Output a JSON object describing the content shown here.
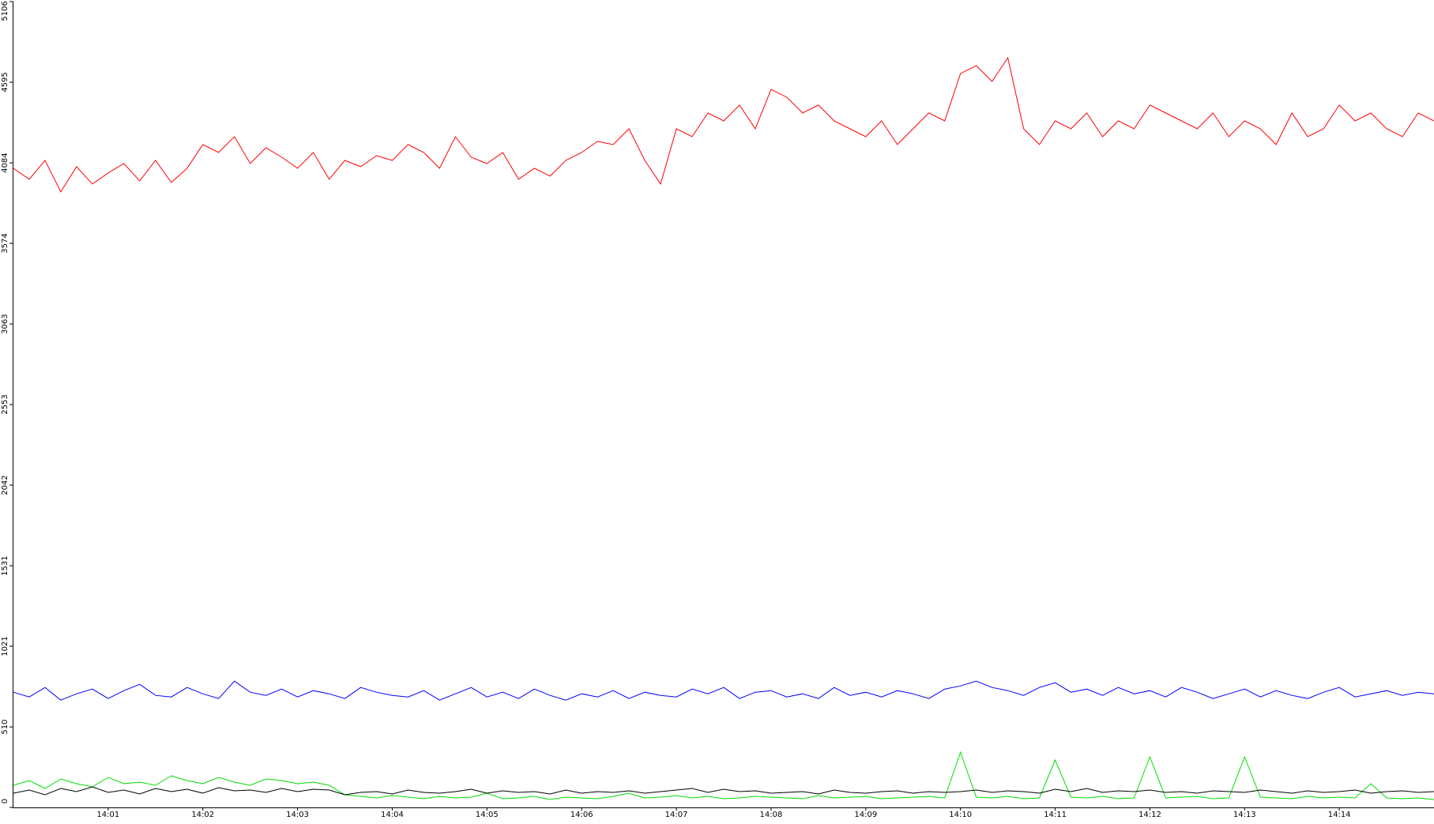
{
  "chart_data": {
    "type": "line",
    "categories": [
      null,
      null,
      null,
      null,
      null,
      null,
      "14:01",
      null,
      null,
      null,
      null,
      null,
      "14:02",
      null,
      null,
      null,
      null,
      null,
      "14:03",
      null,
      null,
      null,
      null,
      null,
      "14:04",
      null,
      null,
      null,
      null,
      null,
      "14:05",
      null,
      null,
      null,
      null,
      null,
      "14:06",
      null,
      null,
      null,
      null,
      null,
      "14:07",
      null,
      null,
      null,
      null,
      null,
      "14:08",
      null,
      null,
      null,
      null,
      null,
      "14:09",
      null,
      null,
      null,
      null,
      null,
      "14:10",
      null,
      null,
      null,
      null,
      null,
      "14:11",
      null,
      null,
      null,
      null,
      null,
      "14:12",
      null,
      null,
      null,
      null,
      null,
      "14:13",
      null,
      null,
      null,
      null,
      null,
      "14:14",
      null,
      null,
      null,
      null,
      null,
      null
    ],
    "series": [
      {
        "color": "#ff0000",
        "values": [
          4050,
          3980,
          4100,
          3900,
          4060,
          3950,
          4020,
          4080,
          3970,
          4100,
          3960,
          4050,
          4200,
          4150,
          4250,
          4080,
          4180,
          4120,
          4050,
          4150,
          3980,
          4100,
          4060,
          4130,
          4100,
          4200,
          4150,
          4050,
          4250,
          4120,
          4080,
          4150,
          3980,
          4050,
          4000,
          4100,
          4150,
          4220,
          4200,
          4300,
          4100,
          3950,
          4300,
          4250,
          4400,
          4350,
          4450,
          4300,
          4550,
          4500,
          4400,
          4450,
          4350,
          4300,
          4250,
          4350,
          4200,
          4300,
          4400,
          4350,
          4650,
          4700,
          4600,
          4750,
          4300,
          4200,
          4350,
          4300,
          4400,
          4250,
          4350,
          4300,
          4450,
          4400,
          4350,
          4300,
          4400,
          4250,
          4350,
          4300,
          4200,
          4400,
          4250,
          4300,
          4450,
          4350,
          4400,
          4300,
          4250,
          4400,
          4350
        ]
      },
      {
        "color": "#0000ff",
        "values": [
          730,
          700,
          760,
          680,
          720,
          750,
          690,
          740,
          780,
          710,
          700,
          760,
          720,
          690,
          800,
          730,
          710,
          750,
          700,
          740,
          720,
          690,
          760,
          730,
          710,
          700,
          740,
          680,
          720,
          760,
          700,
          730,
          690,
          750,
          710,
          680,
          720,
          700,
          740,
          690,
          730,
          710,
          700,
          750,
          720,
          760,
          690,
          730,
          740,
          700,
          720,
          690,
          760,
          710,
          730,
          700,
          740,
          720,
          690,
          750,
          770,
          800,
          760,
          740,
          710,
          760,
          790,
          730,
          750,
          710,
          760,
          720,
          740,
          700,
          760,
          730,
          690,
          720,
          750,
          700,
          740,
          710,
          690,
          730,
          760,
          700,
          720,
          740,
          710,
          730,
          720
        ]
      },
      {
        "color": "#00dd00",
        "values": [
          140,
          170,
          120,
          180,
          150,
          130,
          190,
          150,
          160,
          140,
          200,
          170,
          150,
          190,
          160,
          140,
          180,
          170,
          150,
          160,
          140,
          80,
          70,
          60,
          75,
          65,
          55,
          70,
          60,
          65,
          90,
          55,
          60,
          70,
          50,
          65,
          60,
          55,
          70,
          90,
          60,
          65,
          75,
          60,
          70,
          55,
          60,
          70,
          65,
          60,
          55,
          75,
          60,
          65,
          70,
          55,
          60,
          65,
          70,
          60,
          350,
          65,
          60,
          70,
          55,
          60,
          300,
          65,
          60,
          70,
          55,
          60,
          320,
          60,
          65,
          70,
          55,
          60,
          320,
          65,
          60,
          55,
          70,
          60,
          65,
          60,
          150,
          60,
          55,
          60,
          50
        ]
      },
      {
        "color": "#000000",
        "values": [
          90,
          110,
          80,
          120,
          100,
          130,
          95,
          110,
          85,
          120,
          100,
          115,
          90,
          125,
          105,
          110,
          95,
          120,
          100,
          115,
          110,
          80,
          95,
          100,
          85,
          110,
          95,
          90,
          100,
          115,
          90,
          105,
          95,
          100,
          85,
          110,
          90,
          100,
          95,
          105,
          90,
          100,
          110,
          120,
          95,
          115,
          100,
          105,
          90,
          95,
          100,
          85,
          110,
          95,
          90,
          100,
          105,
          90,
          100,
          95,
          100,
          110,
          95,
          105,
          100,
          90,
          115,
          100,
          120,
          95,
          105,
          100,
          110,
          95,
          100,
          90,
          105,
          100,
          95,
          110,
          100,
          90,
          105,
          95,
          100,
          110,
          90,
          100,
          105,
          95,
          100
        ]
      }
    ],
    "ylim": [
      0,
      5106
    ],
    "yticks": [
      0,
      510,
      1021,
      1531,
      2042,
      2553,
      3063,
      3574,
      4084,
      4595,
      5106
    ]
  }
}
